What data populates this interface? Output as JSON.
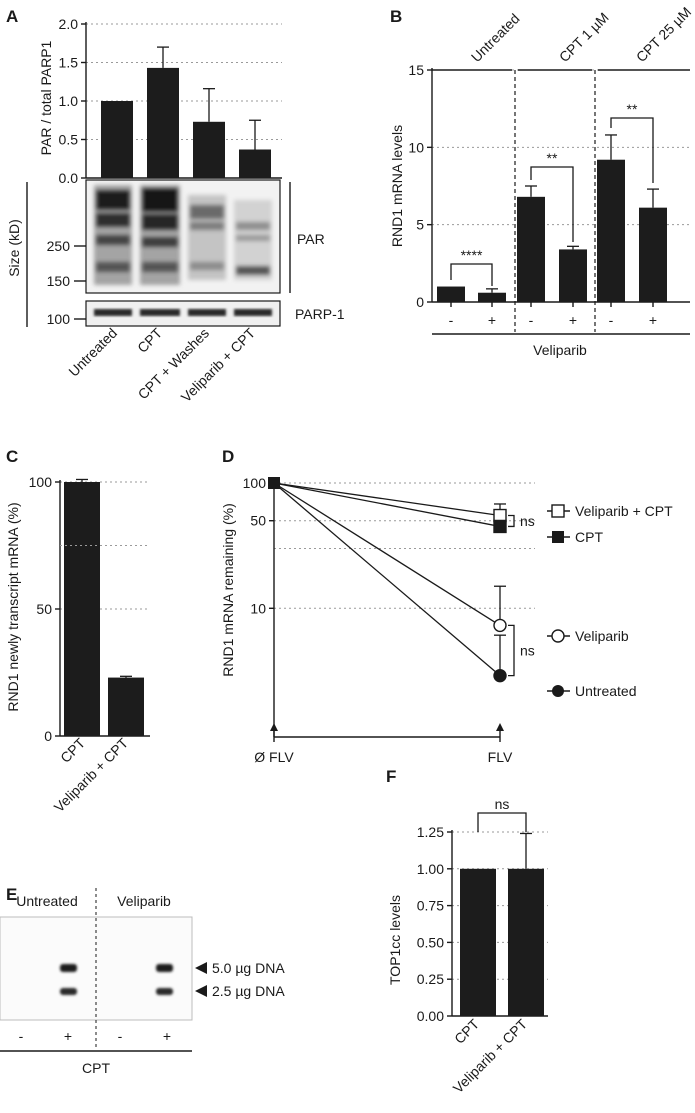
{
  "panels": {
    "A": {
      "label": "A"
    },
    "B": {
      "label": "B"
    },
    "C": {
      "label": "C"
    },
    "D": {
      "label": "D"
    },
    "E": {
      "label": "E"
    },
    "F": {
      "label": "F"
    }
  },
  "chart_data": [
    {
      "panel": "A",
      "type": "bar",
      "ylabel": "PAR / total PARP1",
      "ylim": [
        0,
        2.0
      ],
      "yticks": [
        "0.0",
        "0.5",
        "1.0",
        "1.5",
        "2.0"
      ],
      "categories": [
        "Untreated",
        "CPT",
        "CPT + Washes",
        "Veliparib + CPT"
      ],
      "values": [
        1.0,
        1.43,
        0.73,
        0.37
      ],
      "errors": [
        0,
        0.27,
        0.43,
        0.38
      ],
      "grid": true,
      "blot": {
        "size_axis_label": "Size (kD)",
        "markers": [
          "250",
          "150",
          "100"
        ],
        "labels": [
          "PAR",
          "PARP-1"
        ]
      }
    },
    {
      "panel": "B",
      "type": "bar",
      "ylabel": "RND1 mRNA levels",
      "ylim": [
        0,
        15
      ],
      "yticks": [
        "0",
        "5",
        "10",
        "15"
      ],
      "groups": [
        "Untreated",
        "CPT 1 µM",
        "CPT 25 µM"
      ],
      "categories": [
        "-",
        "+",
        "-",
        "+",
        "-",
        "+"
      ],
      "values": [
        1.0,
        0.6,
        6.8,
        3.4,
        9.2,
        6.1
      ],
      "errors": [
        0,
        0.25,
        0.7,
        0.2,
        1.6,
        1.2
      ],
      "significance": [
        "****",
        "**",
        "**"
      ],
      "xlabel": "Veliparib",
      "grid": true
    },
    {
      "panel": "C",
      "type": "bar",
      "ylabel": "RND1 newly transcript mRNA (%)",
      "ylim": [
        0,
        100
      ],
      "yticks": [
        "0",
        "50",
        "100"
      ],
      "categories": [
        "CPT",
        "Veliparib + CPT"
      ],
      "values": [
        100,
        23
      ],
      "errors": [
        1.0,
        0.5
      ],
      "grid": true
    },
    {
      "panel": "D",
      "type": "line",
      "ylabel": "RND1 mRNA remaining (%)",
      "yscale": "log",
      "yticks": [
        "100",
        "50",
        "10"
      ],
      "x": [
        "Ø FLV",
        "FLV"
      ],
      "series": [
        {
          "name": "Veliparib + CPT",
          "values": [
            100,
            55
          ],
          "error": 13,
          "marker": "open-square"
        },
        {
          "name": "CPT",
          "values": [
            100,
            45
          ],
          "error": 13,
          "marker": "filled-square"
        },
        {
          "name": "Veliparib",
          "values": [
            100,
            7.3
          ],
          "error": 7.7,
          "marker": "open-circle"
        },
        {
          "name": "Untreated",
          "values": [
            100,
            2.9
          ],
          "error": 3.2,
          "marker": "filled-circle"
        }
      ],
      "significance": [
        "ns",
        "ns"
      ],
      "grid": true
    },
    {
      "panel": "F",
      "type": "bar",
      "ylabel": "TOP1cc levels",
      "ylim": [
        0,
        1.25
      ],
      "yticks": [
        "0.00",
        "0.25",
        "0.50",
        "0.75",
        "1.00",
        "1.25"
      ],
      "categories": [
        "CPT",
        "Veliparib + CPT"
      ],
      "values": [
        1.0,
        1.0
      ],
      "errors": [
        0,
        0.24
      ],
      "significance": [
        "ns"
      ],
      "grid": true
    }
  ],
  "blotE": {
    "groups": [
      "Untreated",
      "Veliparib"
    ],
    "band_labels": [
      "5.0 µg DNA",
      "2.5 µg DNA"
    ],
    "lanes": [
      "-",
      "+",
      "-",
      "+"
    ],
    "xlabel": "CPT"
  }
}
